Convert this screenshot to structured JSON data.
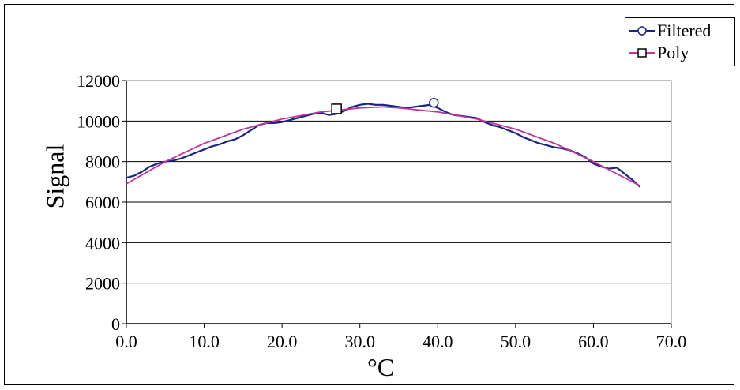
{
  "chart_data": {
    "type": "line",
    "xlabel": "°C",
    "ylabel": "Signal",
    "xlim": [
      0,
      70
    ],
    "ylim": [
      0,
      12000
    ],
    "x_ticks": [
      "0.0",
      "10.0",
      "20.0",
      "30.0",
      "40.0",
      "50.0",
      "60.0",
      "70.0"
    ],
    "y_ticks": [
      "0",
      "2000",
      "4000",
      "6000",
      "8000",
      "10000",
      "12000"
    ],
    "grid": "horizontal major gridlines",
    "legend_position": "top-right",
    "series": [
      {
        "name": "Filtered",
        "color": "#1a237e",
        "marker": "circle",
        "x": [
          0,
          1,
          2,
          3,
          4,
          5,
          6,
          7,
          8,
          9,
          10,
          11,
          12,
          13,
          14,
          15,
          16,
          17,
          18,
          19,
          20,
          21,
          22,
          23,
          24,
          25,
          26,
          27,
          28,
          29,
          30,
          31,
          32,
          33,
          34,
          35,
          36,
          37,
          38,
          39,
          40,
          41,
          42,
          43,
          44,
          45,
          46,
          47,
          48,
          49,
          50,
          51,
          52,
          53,
          54,
          55,
          56,
          57,
          58,
          59,
          60,
          61,
          62,
          63,
          64,
          65,
          66
        ],
        "y": [
          7200,
          7300,
          7500,
          7750,
          7900,
          8000,
          8050,
          8150,
          8300,
          8450,
          8600,
          8750,
          8850,
          9000,
          9100,
          9300,
          9550,
          9800,
          9900,
          9900,
          9950,
          10050,
          10150,
          10250,
          10350,
          10400,
          10300,
          10350,
          10500,
          10700,
          10800,
          10850,
          10800,
          10800,
          10750,
          10700,
          10650,
          10700,
          10750,
          10800,
          10650,
          10450,
          10300,
          10250,
          10200,
          10150,
          9950,
          9800,
          9700,
          9550,
          9400,
          9200,
          9050,
          8900,
          8800,
          8700,
          8650,
          8550,
          8400,
          8200,
          7900,
          7750,
          7650,
          7700,
          7400,
          7100,
          6750
        ],
        "marker_points": [
          [
            39.5,
            10900
          ]
        ]
      },
      {
        "name": "Poly",
        "color": "#c2359a",
        "marker": "square",
        "x": [
          0,
          5,
          10,
          15,
          20,
          25,
          30,
          33,
          35,
          40,
          45,
          50,
          55,
          60,
          65,
          66
        ],
        "y": [
          6900,
          8000,
          8900,
          9600,
          10100,
          10450,
          10650,
          10700,
          10650,
          10450,
          10100,
          9600,
          8900,
          8000,
          7000,
          6800
        ],
        "marker_points": [
          [
            27,
            10600
          ]
        ]
      }
    ]
  }
}
